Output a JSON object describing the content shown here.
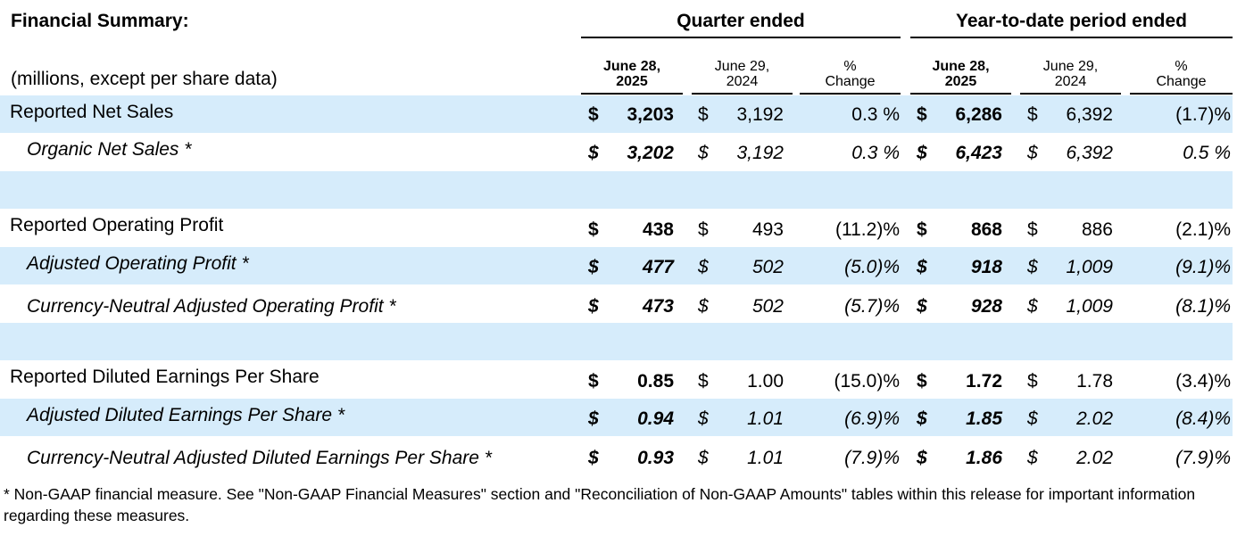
{
  "header": {
    "title": "Financial Summary:",
    "units": "(millions, except per share data)",
    "group_quarter": "Quarter ended",
    "group_ytd": "Year-to-date period ended",
    "columns": [
      {
        "l1": "June 28,",
        "l2": "2025"
      },
      {
        "l1": "June 29,",
        "l2": "2024"
      },
      {
        "l1": "%",
        "l2": "Change"
      },
      {
        "l1": "June 28,",
        "l2": "2025"
      },
      {
        "l1": "June 29,",
        "l2": "2024"
      },
      {
        "l1": "%",
        "l2": "Change"
      }
    ]
  },
  "rows": [
    {
      "label": "Reported Net Sales",
      "q25": "3,203",
      "q24": "3,192",
      "qchg": "0.3 %",
      "y25": "6,286",
      "y24": "6,392",
      "ychg": "(1.7)%"
    },
    {
      "label": "Organic Net Sales *",
      "q25": "3,202",
      "q24": "3,192",
      "qchg": "0.3 %",
      "y25": "6,423",
      "y24": "6,392",
      "ychg": "0.5 %"
    },
    {
      "label": "Reported Operating Profit",
      "q25": "438",
      "q24": "493",
      "qchg": "(11.2)%",
      "y25": "868",
      "y24": "886",
      "ychg": "(2.1)%"
    },
    {
      "label": "Adjusted Operating Profit *",
      "q25": "477",
      "q24": "502",
      "qchg": "(5.0)%",
      "y25": "918",
      "y24": "1,009",
      "ychg": "(9.1)%"
    },
    {
      "label": "Currency-Neutral Adjusted Operating Profit *",
      "q25": "473",
      "q24": "502",
      "qchg": "(5.7)%",
      "y25": "928",
      "y24": "1,009",
      "ychg": "(8.1)%"
    },
    {
      "label": "Reported Diluted Earnings Per Share",
      "q25": "0.85",
      "q24": "1.00",
      "qchg": "(15.0)%",
      "y25": "1.72",
      "y24": "1.78",
      "ychg": "(3.4)%"
    },
    {
      "label": "Adjusted Diluted Earnings Per Share *",
      "q25": "0.94",
      "q24": "1.01",
      "qchg": "(6.9)%",
      "y25": "1.85",
      "y24": "2.02",
      "ychg": "(8.4)%"
    },
    {
      "label": "Currency-Neutral Adjusted Diluted Earnings Per Share *",
      "q25": "0.93",
      "q24": "1.01",
      "qchg": "(7.9)%",
      "y25": "1.86",
      "y24": "2.02",
      "ychg": "(7.9)%"
    }
  ],
  "currency_symbol": "$",
  "band_color": "#d6ecfb",
  "footnote": "* Non-GAAP financial measure. See \"Non-GAAP Financial Measures\" section and \"Reconciliation of Non-GAAP Amounts\" tables within this release for important information regarding these measures."
}
